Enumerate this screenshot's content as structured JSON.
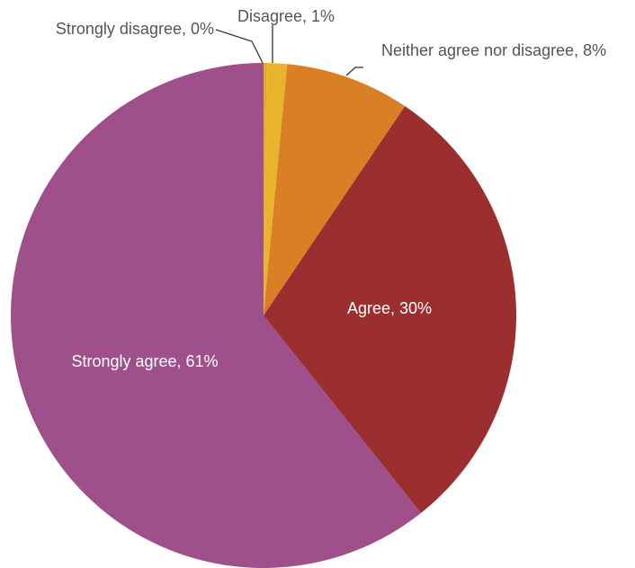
{
  "chart_data": {
    "type": "pie",
    "slices": [
      {
        "label": "Strongly disagree",
        "value": 0.2,
        "display": "Strongly disagree, 0%",
        "color": "#e8a82c"
      },
      {
        "label": "Disagree",
        "value": 1.3,
        "display": "Disagree, 1%",
        "color": "#e8b42c"
      },
      {
        "label": "Neither agree nor disagree",
        "value": 8,
        "display": "Neither agree nor disagree, 8%",
        "color": "#d98027"
      },
      {
        "label": "Agree",
        "value": 30,
        "display": "Agree, 30%",
        "color": "#9b2e2f"
      },
      {
        "label": "Strongly agree",
        "value": 61,
        "display": "Strongly agree, 61%",
        "color": "#9f508b"
      }
    ],
    "start_angle_deg": 0,
    "direction": "clockwise",
    "legend": "none"
  }
}
